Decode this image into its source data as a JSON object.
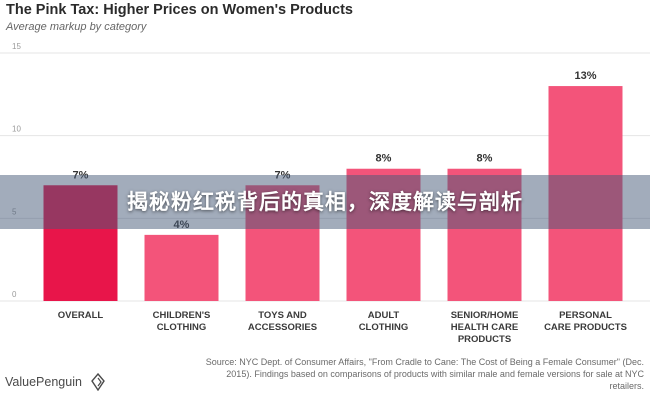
{
  "banner": {
    "text": "揭秘粉红税背后的真相，深度解读与剖析"
  },
  "source": {
    "text": "Source: NYC Dept. of Consumer Affairs, \"From Cradle to Cane: The Cost of Being a Female Consumer\" (Dec. 2015). Findings based on comparisons of products with similar male and female versions for sale at NYC retailers."
  },
  "brand": {
    "name": "ValuePenguin",
    "icon": "penguin-logo-icon"
  },
  "colors": {
    "bar_highlight": "#e8154a",
    "bar": "#f3547a",
    "grid": "#e4e4e4",
    "label": "#333333"
  },
  "chart_data": {
    "type": "bar",
    "title": "The Pink Tax: Higher Prices on Women's Products",
    "subtitle": "Average markup by category",
    "categories": [
      [
        "OVERALL"
      ],
      [
        "CHILDREN'S",
        "CLOTHING"
      ],
      [
        "TOYS AND",
        "ACCESSORIES"
      ],
      [
        "ADULT",
        "CLOTHING"
      ],
      [
        "SENIOR/HOME",
        "HEALTH CARE",
        "PRODUCTS"
      ],
      [
        "PERSONAL",
        "CARE PRODUCTS"
      ]
    ],
    "values": [
      7,
      4,
      7,
      8,
      8,
      13
    ],
    "value_labels": [
      "7%",
      "4%",
      "7%",
      "8%",
      "8%",
      "13%"
    ],
    "ylim": [
      0,
      15
    ],
    "yticks": [
      0,
      5,
      10,
      15
    ],
    "grid": true,
    "highlight_index": 0
  }
}
